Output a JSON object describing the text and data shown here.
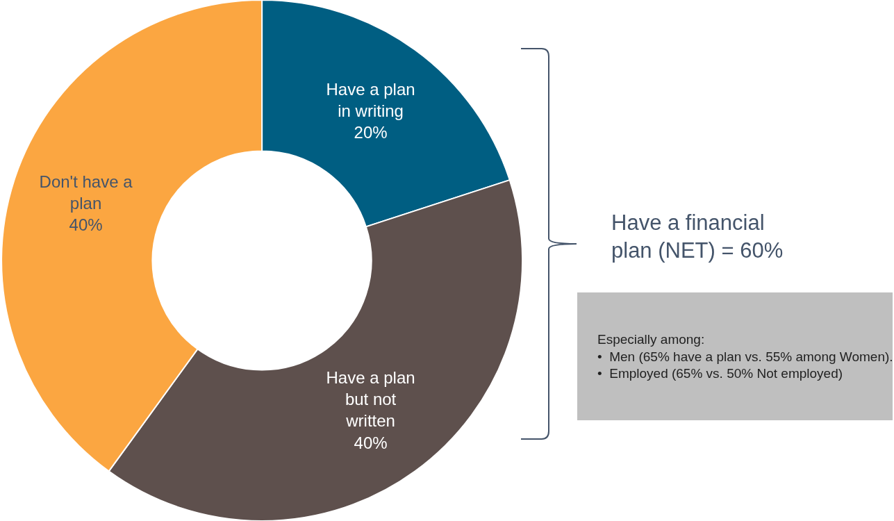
{
  "chart_data": {
    "type": "donut",
    "categories": [
      "Have a plan in writing",
      "Have a plan but not written",
      "Don't have a plan"
    ],
    "values": [
      20,
      40,
      40
    ],
    "colors": [
      "#005e82",
      "#5e504d",
      "#fba641"
    ],
    "value_labels": [
      "20%",
      "40%",
      "40%"
    ],
    "legend": false,
    "annotations": [
      "Have a financial plan (NET) = 60%",
      "Especially among:\n•  Men (65% have a plan vs. 55% among Women).\n•  Employed (65% vs. 50% Not employed)"
    ]
  }
}
